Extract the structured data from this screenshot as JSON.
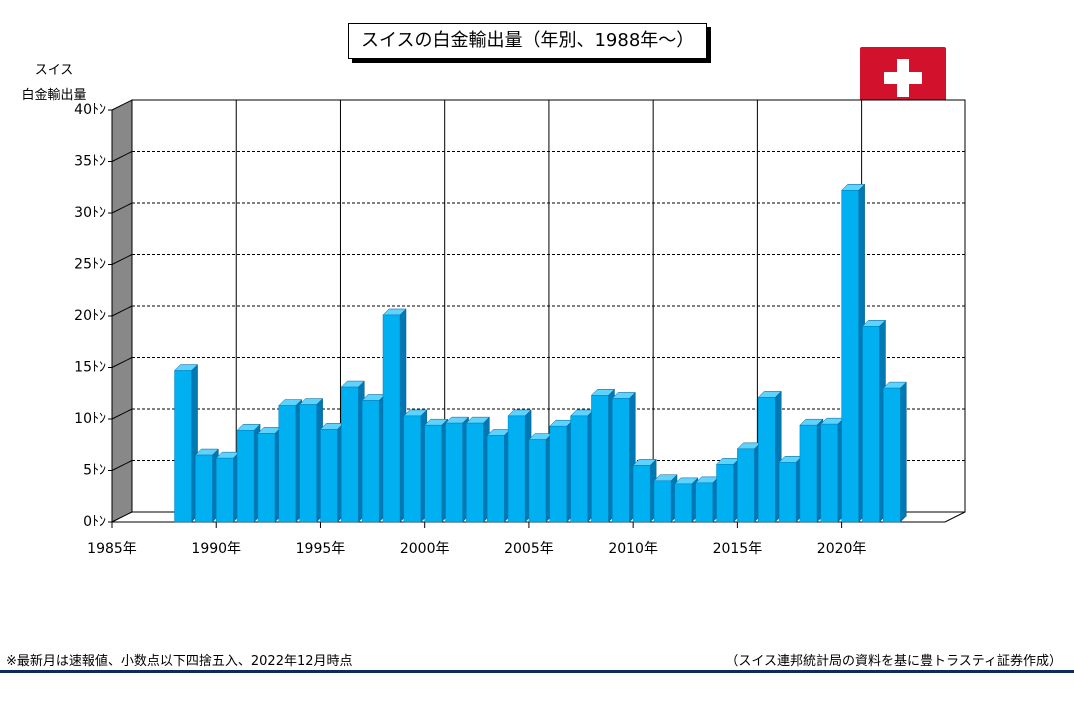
{
  "title": "スイスの白金輸出量（年別、1988年～）",
  "ylabel_line1": "スイス",
  "ylabel_line2": "白金輸出量",
  "footer_note": "※最新月は速報値、小数点以下四捨五入、2022年12月時点",
  "footer_source": "（スイス連邦統計局の資料を基に豊トラスティ証券作成）",
  "flag_icon": "swiss-flag-icon",
  "colors": {
    "bar_front": "#00b0f0",
    "bar_side": "#0078b4",
    "bar_top": "#5fd3ff",
    "wall": "#888888",
    "flag_red": "#d2112c",
    "footer_rule": "#0f2a5c"
  },
  "chart_data": {
    "type": "bar",
    "title": "スイスの白金輸出量（年別、1988年～）",
    "ylabel": "スイス 白金輸出量",
    "y_unit": "ﾄﾝ",
    "ylim": [
      0,
      40
    ],
    "yticks": [
      0,
      5,
      10,
      15,
      20,
      25,
      30,
      35,
      40
    ],
    "ytick_labels": [
      "0ﾄﾝ",
      "5ﾄﾝ",
      "10ﾄﾝ",
      "15ﾄﾝ",
      "20ﾄﾝ",
      "25ﾄﾝ",
      "30ﾄﾝ",
      "35ﾄﾝ",
      "40ﾄﾝ"
    ],
    "xlim": [
      1985,
      2024
    ],
    "xticks": [
      1985,
      1990,
      1995,
      2000,
      2005,
      2010,
      2015,
      2020
    ],
    "xtick_labels": [
      "1985年",
      "1990年",
      "1995年",
      "2000年",
      "2005年",
      "2010年",
      "2015年",
      "2020年"
    ],
    "grid": true,
    "categories": [
      1988,
      1989,
      1990,
      1991,
      1992,
      1993,
      1994,
      1995,
      1996,
      1997,
      1998,
      1999,
      2000,
      2001,
      2002,
      2003,
      2004,
      2005,
      2006,
      2007,
      2008,
      2009,
      2010,
      2011,
      2012,
      2013,
      2014,
      2015,
      2016,
      2017,
      2018,
      2019,
      2020,
      2021,
      2022
    ],
    "values": [
      14.7,
      6.5,
      6.2,
      8.9,
      8.6,
      11.3,
      11.4,
      9.0,
      13.1,
      11.8,
      20.1,
      10.3,
      9.4,
      9.6,
      9.6,
      8.4,
      10.3,
      8.0,
      9.3,
      10.3,
      12.3,
      12.0,
      5.5,
      4.0,
      3.7,
      3.8,
      5.6,
      7.1,
      12.1,
      5.8,
      9.4,
      9.5,
      32.2,
      19.0,
      13.0
    ]
  }
}
